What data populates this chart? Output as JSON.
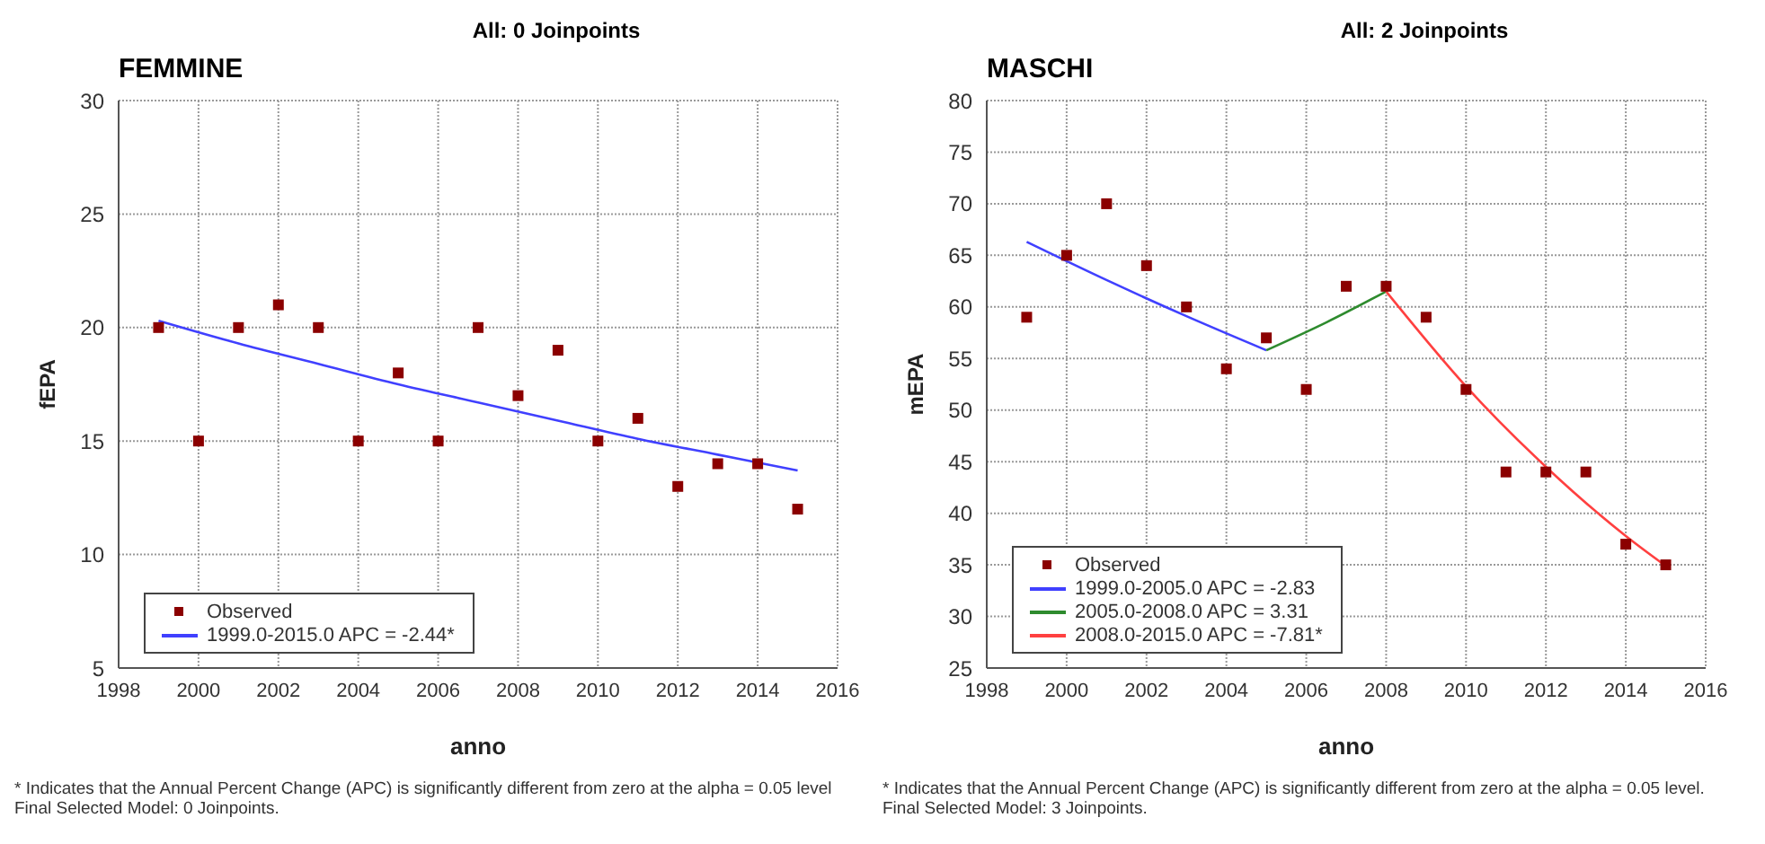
{
  "chart_data": [
    {
      "type": "scatter",
      "title": "All: 0 Joinpoints",
      "subtitle": "FEMMINE",
      "xlabel": "anno",
      "ylabel": "fEPA",
      "xlim": [
        1998,
        2016
      ],
      "xticks": [
        1998,
        2000,
        2002,
        2004,
        2006,
        2008,
        2010,
        2012,
        2014,
        2016
      ],
      "ylim": [
        5,
        30
      ],
      "yticks": [
        5,
        10,
        15,
        20,
        25,
        30
      ],
      "grid": true,
      "legend": "bottom left",
      "series": [
        {
          "name": "Observed",
          "marker": "square",
          "color": "#8b0000",
          "x": [
            1999,
            2000,
            2001,
            2002,
            2003,
            2004,
            2005,
            2006,
            2007,
            2008,
            2009,
            2010,
            2011,
            2012,
            2013,
            2014,
            2015
          ],
          "values": [
            20,
            15,
            20,
            21,
            20,
            15,
            18,
            15,
            20,
            17,
            19,
            15,
            16,
            13,
            14,
            14,
            12
          ]
        },
        {
          "name": "1999.0-2015.0 APC  = -2.44*",
          "type": "line",
          "color": "#4040ff",
          "x": [
            1999,
            2001,
            2003,
            2005,
            2007,
            2009,
            2011,
            2013,
            2015
          ],
          "values": [
            20.3,
            19.3,
            18.4,
            17.5,
            16.7,
            15.9,
            15.1,
            14.4,
            13.7
          ]
        }
      ],
      "annotations": [
        "* Indicates that the Annual Percent Change (APC) is significantly different from zero at the alpha = 0.05 level",
        "Final Selected Model: 0 Joinpoints."
      ]
    },
    {
      "type": "scatter",
      "title": "All: 2 Joinpoints",
      "subtitle": "MASCHI",
      "xlabel": "anno",
      "ylabel": "mEPA",
      "xlim": [
        1998,
        2016
      ],
      "xticks": [
        1998,
        2000,
        2002,
        2004,
        2006,
        2008,
        2010,
        2012,
        2014,
        2016
      ],
      "ylim": [
        25,
        80
      ],
      "yticks": [
        25,
        30,
        35,
        40,
        45,
        50,
        55,
        60,
        65,
        70,
        75,
        80
      ],
      "grid": true,
      "legend": "bottom left",
      "series": [
        {
          "name": "Observed",
          "marker": "square",
          "color": "#8b0000",
          "x": [
            1999,
            2000,
            2001,
            2002,
            2003,
            2004,
            2005,
            2006,
            2007,
            2008,
            2009,
            2010,
            2011,
            2012,
            2013,
            2014,
            2015
          ],
          "values": [
            59,
            65,
            70,
            64,
            60,
            54,
            57,
            52,
            62,
            62,
            59,
            52,
            44,
            44,
            44,
            37,
            35
          ]
        },
        {
          "name": "1999.0-2005.0 APC  = -2.83",
          "type": "line",
          "color": "#4040ff",
          "x": [
            1999,
            2001,
            2003,
            2005
          ],
          "values": [
            66.3,
            62.6,
            59.1,
            55.8
          ]
        },
        {
          "name": "2005.0-2008.0 APC  =  3.31",
          "type": "line",
          "color": "#2e8b2e",
          "x": [
            2005,
            2006.5,
            2008
          ],
          "values": [
            55.8,
            58.5,
            61.5
          ]
        },
        {
          "name": "2008.0-2015.0 APC  = -7.81*",
          "type": "line",
          "color": "#ff4040",
          "x": [
            2008,
            2010,
            2012,
            2014,
            2015
          ],
          "values": [
            61.5,
            52.3,
            44.5,
            37.8,
            34.9
          ]
        }
      ],
      "annotations": [
        "* Indicates that the Annual Percent Change (APC) is significantly different from zero at the alpha = 0.05 level.",
        "Final Selected Model: 3 Joinpoints."
      ]
    }
  ]
}
